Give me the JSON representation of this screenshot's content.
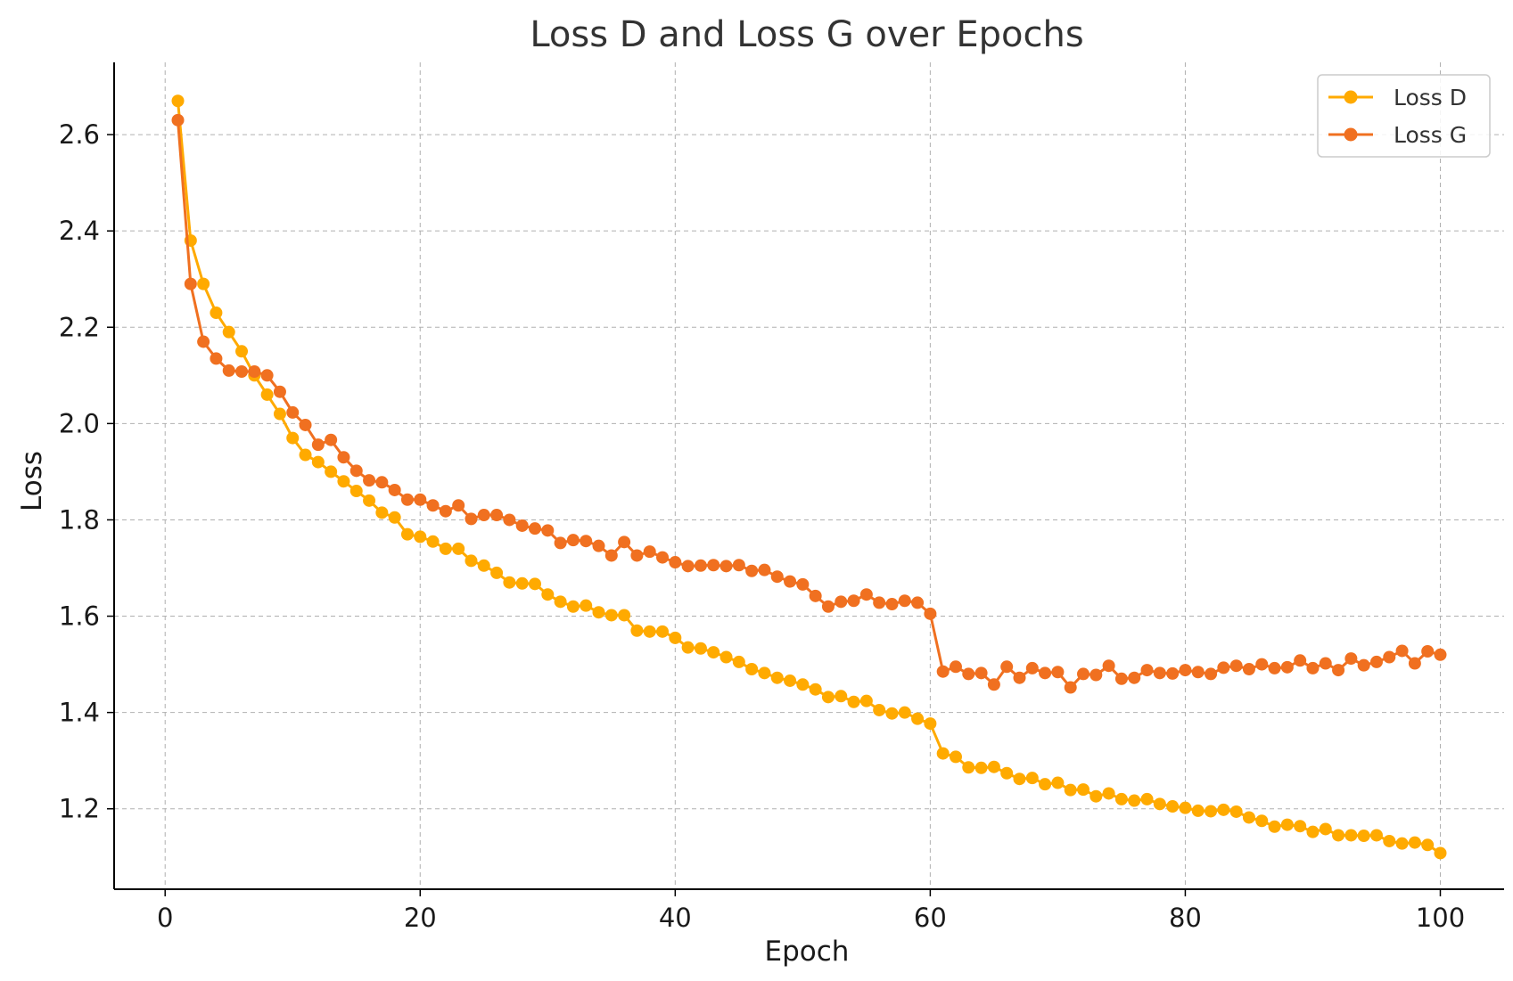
{
  "chart_data": {
    "type": "line",
    "title": "Loss D and Loss G over Epochs",
    "xlabel": "Epoch",
    "ylabel": "Loss",
    "xlim": [
      -4,
      105
    ],
    "ylim": [
      1.033,
      2.75
    ],
    "xticks": [
      0,
      20,
      40,
      60,
      80,
      100
    ],
    "xtick_labels": [
      "0",
      "20",
      "40",
      "60",
      "80",
      "100"
    ],
    "yticks": [
      1.2,
      1.4,
      1.6,
      1.8,
      2.0,
      2.2,
      2.4,
      2.6
    ],
    "ytick_labels": [
      "1.2",
      "1.4",
      "1.6",
      "1.8",
      "2.0",
      "2.2",
      "2.4",
      "2.6"
    ],
    "grid": true,
    "legend": "top-right",
    "x": [
      1,
      2,
      3,
      4,
      5,
      6,
      7,
      8,
      9,
      10,
      11,
      12,
      13,
      14,
      15,
      16,
      17,
      18,
      19,
      20,
      21,
      22,
      23,
      24,
      25,
      26,
      27,
      28,
      29,
      30,
      31,
      32,
      33,
      34,
      35,
      36,
      37,
      38,
      39,
      40,
      41,
      42,
      43,
      44,
      45,
      46,
      47,
      48,
      49,
      50,
      51,
      52,
      53,
      54,
      55,
      56,
      57,
      58,
      59,
      60,
      61,
      62,
      63,
      64,
      65,
      66,
      67,
      68,
      69,
      70,
      71,
      72,
      73,
      74,
      75,
      76,
      77,
      78,
      79,
      80,
      81,
      82,
      83,
      84,
      85,
      86,
      87,
      88,
      89,
      90,
      91,
      92,
      93,
      94,
      95,
      96,
      97,
      98,
      99,
      100
    ],
    "series": [
      {
        "name": "Loss D",
        "color": "#FFAA00",
        "values": [
          2.67,
          2.38,
          2.29,
          2.23,
          2.19,
          2.15,
          2.1,
          2.06,
          2.02,
          1.97,
          1.935,
          1.92,
          1.9,
          1.88,
          1.86,
          1.84,
          1.815,
          1.805,
          1.77,
          1.765,
          1.755,
          1.74,
          1.74,
          1.715,
          1.705,
          1.69,
          1.67,
          1.668,
          1.667,
          1.645,
          1.63,
          1.62,
          1.622,
          1.608,
          1.602,
          1.602,
          1.57,
          1.568,
          1.568,
          1.555,
          1.535,
          1.533,
          1.525,
          1.515,
          1.505,
          1.49,
          1.482,
          1.472,
          1.466,
          1.458,
          1.448,
          1.432,
          1.434,
          1.422,
          1.424,
          1.405,
          1.398,
          1.4,
          1.387,
          1.377,
          1.315,
          1.308,
          1.286,
          1.285,
          1.287,
          1.274,
          1.262,
          1.264,
          1.251,
          1.254,
          1.239,
          1.24,
          1.226,
          1.232,
          1.22,
          1.217,
          1.22,
          1.21,
          1.205,
          1.202,
          1.196,
          1.195,
          1.198,
          1.194,
          1.182,
          1.175,
          1.163,
          1.167,
          1.164,
          1.152,
          1.158,
          1.145,
          1.145,
          1.144,
          1.145,
          1.133,
          1.128,
          1.13,
          1.125,
          1.108
        ]
      },
      {
        "name": "Loss G",
        "color": "#F07020",
        "values": [
          2.63,
          2.29,
          2.17,
          2.135,
          2.11,
          2.108,
          2.108,
          2.1,
          2.066,
          2.023,
          1.997,
          1.956,
          1.966,
          1.93,
          1.902,
          1.882,
          1.878,
          1.862,
          1.842,
          1.842,
          1.83,
          1.818,
          1.83,
          1.802,
          1.81,
          1.81,
          1.8,
          1.788,
          1.782,
          1.778,
          1.752,
          1.758,
          1.756,
          1.746,
          1.726,
          1.754,
          1.726,
          1.734,
          1.722,
          1.712,
          1.704,
          1.705,
          1.706,
          1.704,
          1.706,
          1.694,
          1.696,
          1.682,
          1.672,
          1.666,
          1.642,
          1.62,
          1.63,
          1.632,
          1.645,
          1.628,
          1.625,
          1.632,
          1.628,
          1.605,
          1.485,
          1.495,
          1.48,
          1.482,
          1.458,
          1.495,
          1.472,
          1.492,
          1.482,
          1.484,
          1.452,
          1.48,
          1.478,
          1.497,
          1.47,
          1.472,
          1.488,
          1.482,
          1.481,
          1.488,
          1.484,
          1.48,
          1.493,
          1.497,
          1.49,
          1.5,
          1.492,
          1.494,
          1.508,
          1.492,
          1.502,
          1.488,
          1.512,
          1.498,
          1.505,
          1.515,
          1.528,
          1.502,
          1.527,
          1.52
        ]
      }
    ]
  }
}
